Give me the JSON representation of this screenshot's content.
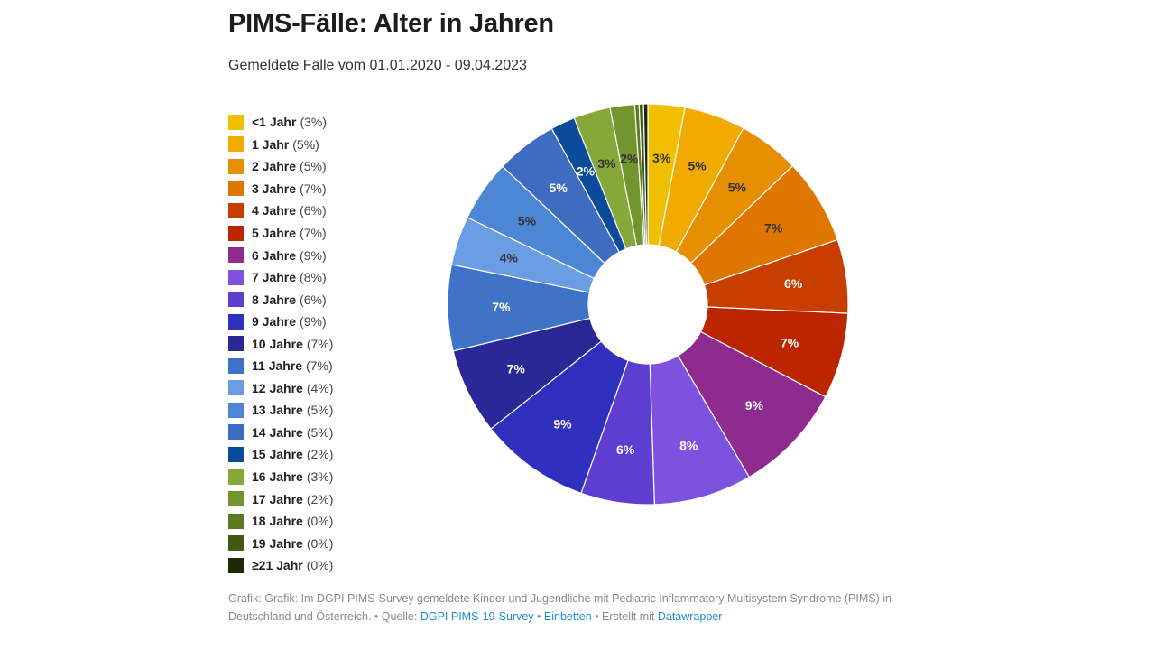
{
  "header": {
    "title": "PIMS-Fälle: Alter in Jahren",
    "subtitle": "Gemeldete Fälle vom 01.01.2020 - 09.04.2023"
  },
  "chart_data": {
    "type": "pie",
    "variant": "donut",
    "legend_position": "left",
    "slices": [
      {
        "label": "<1 Jahr",
        "value": 3,
        "display": "3%",
        "color": "#f0c000",
        "label_color": "#333333"
      },
      {
        "label": "1 Jahr",
        "value": 5,
        "display": "5%",
        "color": "#f0aa00",
        "label_color": "#333333"
      },
      {
        "label": "2 Jahre",
        "value": 5,
        "display": "5%",
        "color": "#e68f00",
        "label_color": "#333333"
      },
      {
        "label": "3 Jahre",
        "value": 7,
        "display": "7%",
        "color": "#de7600",
        "label_color": "#333333"
      },
      {
        "label": "4 Jahre",
        "value": 6,
        "display": "6%",
        "color": "#c83d00",
        "label_color": "#ffffff"
      },
      {
        "label": "5 Jahre",
        "value": 7,
        "display": "7%",
        "color": "#bc2500",
        "label_color": "#ffffff"
      },
      {
        "label": "6 Jahre",
        "value": 9,
        "display": "9%",
        "color": "#8f2a8e",
        "label_color": "#ffffff"
      },
      {
        "label": "7 Jahre",
        "value": 8,
        "display": "8%",
        "color": "#7e52e0",
        "label_color": "#ffffff"
      },
      {
        "label": "8 Jahre",
        "value": 6,
        "display": "6%",
        "color": "#5d3ed0",
        "label_color": "#ffffff"
      },
      {
        "label": "9 Jahre",
        "value": 9,
        "display": "9%",
        "color": "#3030bf",
        "label_color": "#ffffff"
      },
      {
        "label": "10 Jahre",
        "value": 7,
        "display": "7%",
        "color": "#2a2896",
        "label_color": "#ffffff"
      },
      {
        "label": "11 Jahre",
        "value": 7,
        "display": "7%",
        "color": "#3f73c8",
        "label_color": "#ffffff"
      },
      {
        "label": "12 Jahre",
        "value": 4,
        "display": "4%",
        "color": "#6a9de3",
        "label_color": "#333333"
      },
      {
        "label": "13 Jahre",
        "value": 5,
        "display": "5%",
        "color": "#4e86d6",
        "label_color": "#333333"
      },
      {
        "label": "14 Jahre",
        "value": 5,
        "display": "5%",
        "color": "#3d6cc0",
        "label_color": "#ffffff"
      },
      {
        "label": "15 Jahre",
        "value": 2,
        "display": "2%",
        "color": "#0b4b9a",
        "label_color": "#ffffff"
      },
      {
        "label": "16 Jahre",
        "value": 3,
        "display": "3%",
        "color": "#85a838",
        "label_color": "#333333"
      },
      {
        "label": "17 Jahre",
        "value": 2,
        "display": "2%",
        "color": "#73952e",
        "label_color": "#333333"
      },
      {
        "label": "18 Jahre",
        "value": 0,
        "display": "0%",
        "color": "#5b7a22",
        "label_color": "#333333"
      },
      {
        "label": "19 Jahre",
        "value": 0,
        "display": "0%",
        "color": "#405a15",
        "label_color": "#333333"
      },
      {
        "label": "≥21 Jahr",
        "value": 0,
        "display": "0%",
        "color": "#1c2a06",
        "label_color": "#333333"
      }
    ]
  },
  "footer": {
    "text_main": "Grafik: Grafik: Im DGPI PIMS-Survey gemeldete Kinder und Jugendliche mit Pediatric Inflammatory Multisystem Syndrome (PIMS) in Deutschland und Österreich. • Quelle: ",
    "source_link": "DGPI PIMS-19-Survey",
    "sep1": " • ",
    "embed_link": "Einbetten",
    "sep2": " • Erstellt mit ",
    "tool_link": "Datawrapper"
  }
}
